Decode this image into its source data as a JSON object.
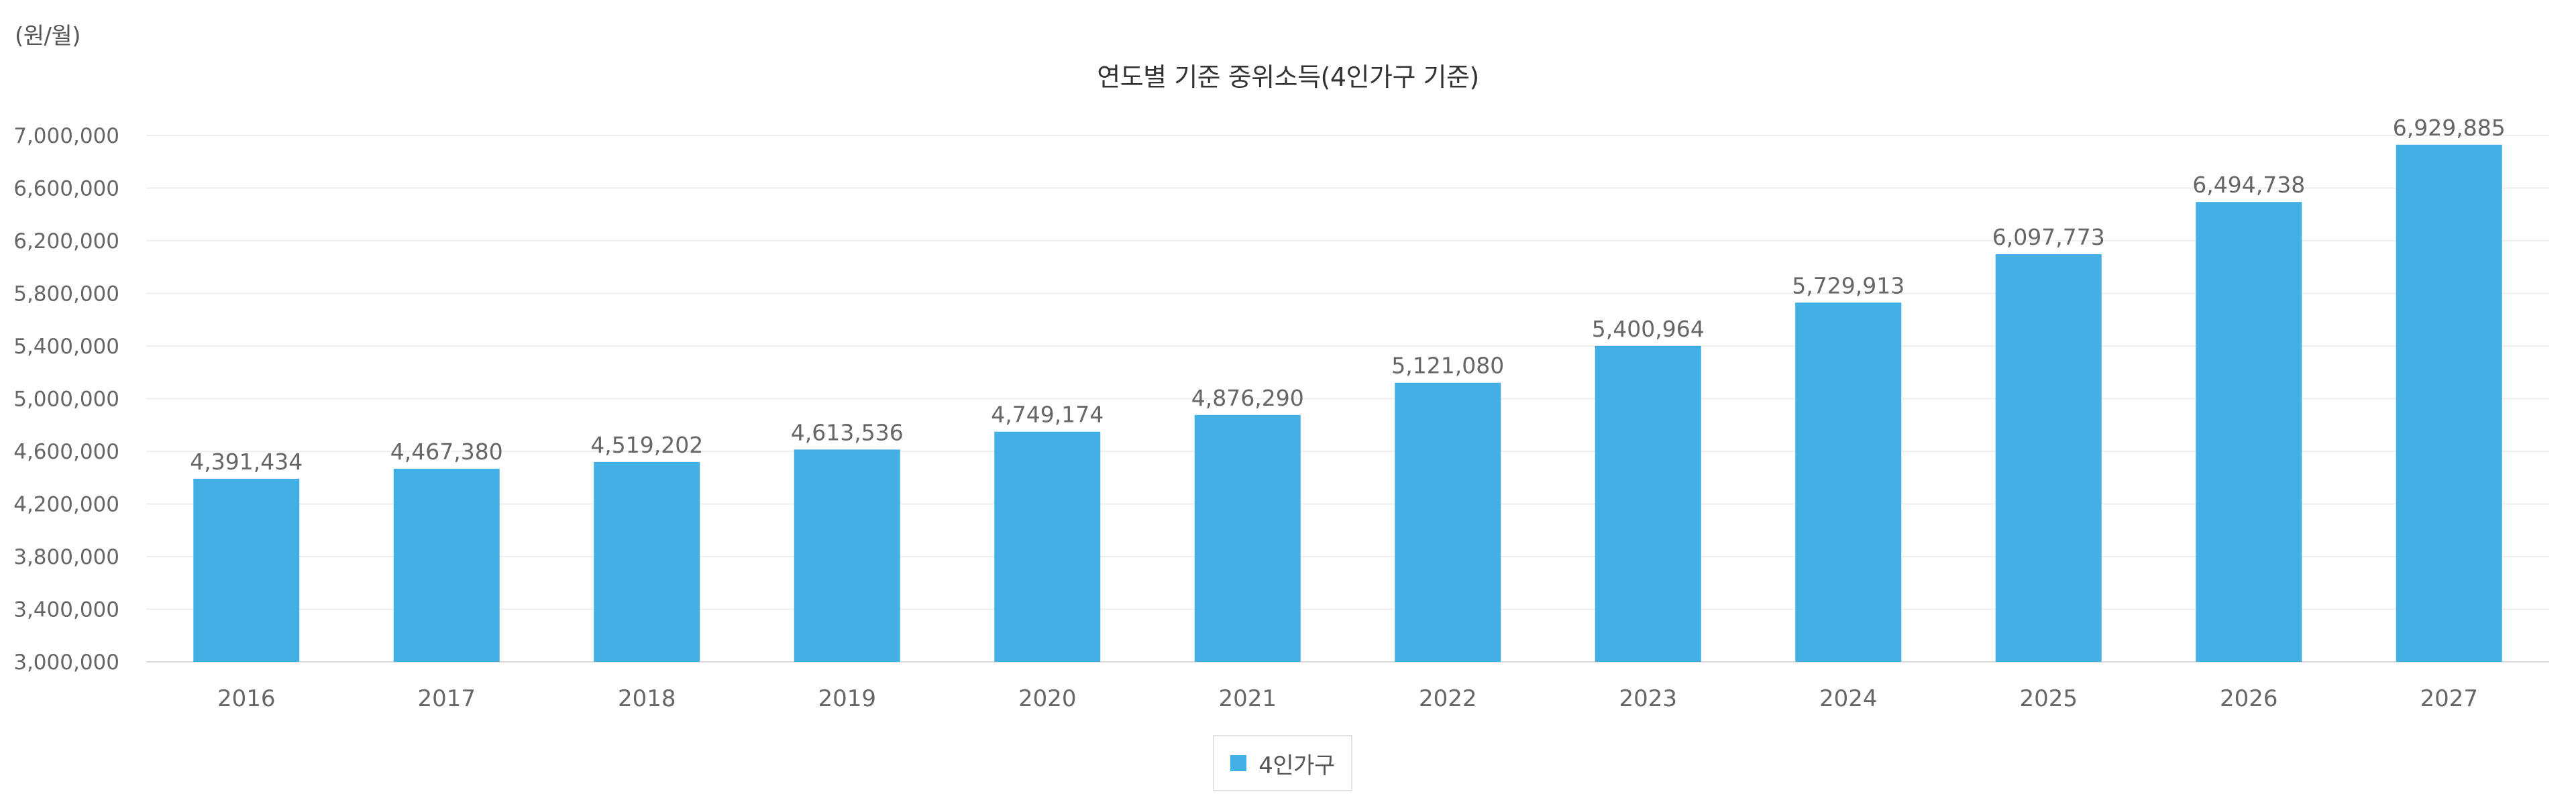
{
  "unit_label": "(원/월)",
  "legend": {
    "label": "4인가구",
    "color": "#42b0e5"
  },
  "colors": {
    "bar": "#42b0e5",
    "grid": "#eeeeee",
    "axis": "#dddddd"
  },
  "chart_data": {
    "type": "bar",
    "title": "연도별 기준 중위소득(4인가구 기준)",
    "xlabel": "",
    "ylabel": "",
    "ylim": [
      3000000,
      7000000
    ],
    "yticks": [
      3000000,
      3400000,
      3800000,
      4200000,
      4600000,
      5000000,
      5400000,
      5800000,
      6200000,
      6600000,
      7000000
    ],
    "ytick_labels": [
      "3,000,000",
      "3,400,000",
      "3,800,000",
      "4,200,000",
      "4,600,000",
      "5,000,000",
      "5,400,000",
      "5,800,000",
      "6,200,000",
      "6,600,000",
      "7,000,000"
    ],
    "grid": true,
    "legend_position": "bottom-center",
    "categories": [
      "2016",
      "2017",
      "2018",
      "2019",
      "2020",
      "2021",
      "2022",
      "2023",
      "2024",
      "2025",
      "2026",
      "2027"
    ],
    "series": [
      {
        "name": "4인가구",
        "values": [
          4391434,
          4467380,
          4519202,
          4613536,
          4749174,
          4876290,
          5121080,
          5400964,
          5729913,
          6097773,
          6494738,
          6929885
        ],
        "value_labels": [
          "4,391,434",
          "4,467,380",
          "4,519,202",
          "4,613,536",
          "4,749,174",
          "4,876,290",
          "5,121,080",
          "5,400,964",
          "5,729,913",
          "6,097,773",
          "6,494,738",
          "6,929,885"
        ]
      }
    ]
  }
}
